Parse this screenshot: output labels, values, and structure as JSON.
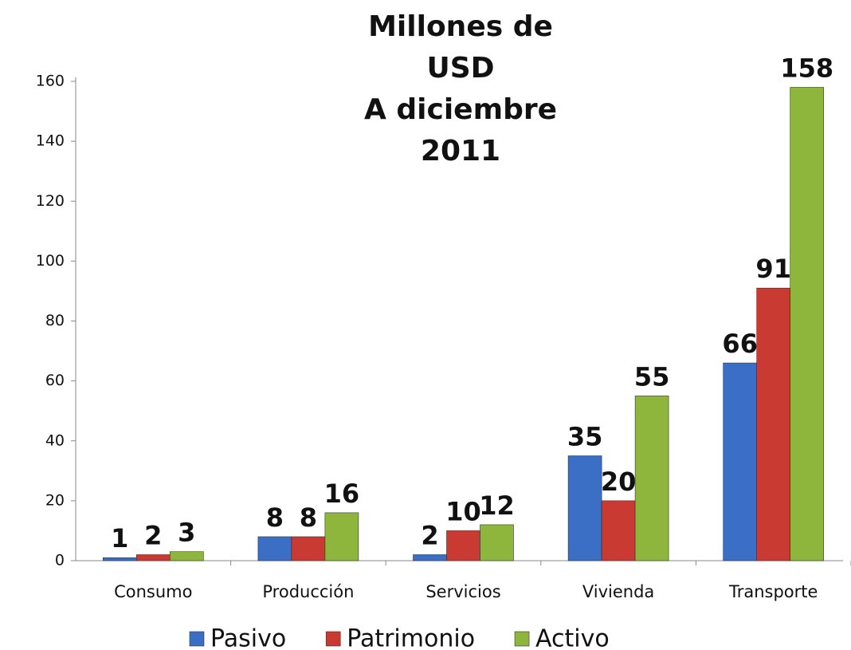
{
  "chart_data": {
    "type": "bar",
    "title": [
      "Millones de",
      "USD",
      "A diciembre",
      "2011"
    ],
    "categories": [
      "Consumo",
      "Producción",
      "Servicios",
      "Vivienda",
      "Transporte"
    ],
    "series": [
      {
        "name": "Pasivo",
        "color": "#3b6fc6",
        "values": [
          1,
          8,
          2,
          35,
          66
        ]
      },
      {
        "name": "Patrimonio",
        "color": "#c83a32",
        "values": [
          2,
          8,
          10,
          20,
          91
        ]
      },
      {
        "name": "Activo",
        "color": "#8fb63c",
        "values": [
          3,
          16,
          12,
          55,
          158
        ]
      }
    ],
    "ylim": [
      0,
      160
    ],
    "yticks": [
      0,
      20,
      40,
      60,
      80,
      100,
      120,
      140,
      160
    ],
    "grid": false,
    "legend": "bottom"
  }
}
